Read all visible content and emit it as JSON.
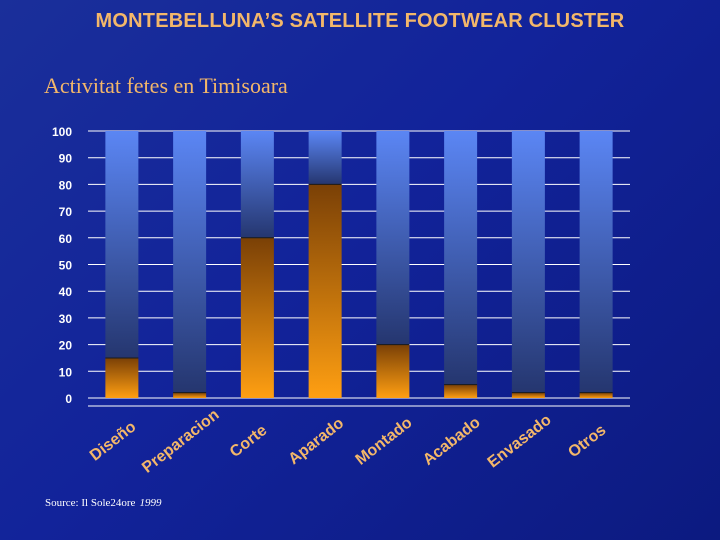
{
  "slide": {
    "title": "MONTEBELLUNA’S SATELLITE FOOTWEAR CLUSTER",
    "subtitle": "Activitat fetes en Timisoara",
    "source_text": "Source: Il Sole24ore",
    "source_year": "1999"
  },
  "colors": {
    "background": "#13249a",
    "title": "#f3b76a",
    "orange_top": "#7a4006",
    "orange_bottom": "#ff9f12",
    "blue_top": "#5b86f4",
    "blue_bottom": "#25366f",
    "axis_text": "#ffffff",
    "category_text": "#f3b76a"
  },
  "chart_data": {
    "type": "bar",
    "stacked": true,
    "categories": [
      "Diseño",
      "Preparacion",
      "Corte",
      "Aparado",
      "Montado",
      "Acabado",
      "Envasado",
      "Otros"
    ],
    "series": [
      {
        "values": [
          15,
          2,
          60,
          80,
          20,
          5,
          2,
          2
        ]
      },
      {
        "values": [
          85,
          98,
          40,
          20,
          80,
          95,
          98,
          98
        ]
      }
    ],
    "ylim": [
      0,
      100
    ],
    "yticks": [
      0,
      10,
      20,
      30,
      40,
      50,
      60,
      70,
      80,
      90,
      100
    ],
    "grid": true,
    "legend": "none"
  }
}
